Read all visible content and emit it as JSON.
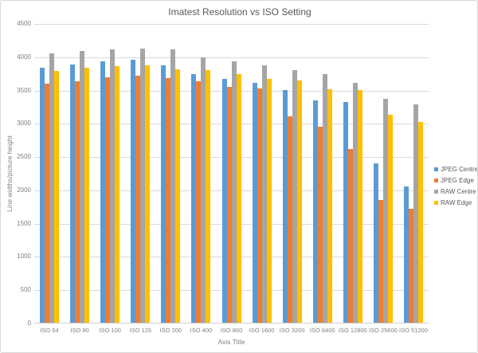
{
  "chart_data": {
    "type": "bar",
    "title": "Imatest Resolution vs ISO Setting",
    "xlabel": "Axis Title",
    "ylabel": "Line widths/picture height",
    "categories": [
      "ISO 64",
      "ISO 80",
      "ISO 100",
      "ISO 125",
      "ISO 200",
      "ISO 400",
      "ISO 800",
      "ISO 1600",
      "ISO 3200",
      "ISO 6400",
      "ISO 12800",
      "ISO 25600",
      "ISO 51200"
    ],
    "series": [
      {
        "name": "JPEG Centre",
        "color": "#5b9bd5",
        "values": [
          3830,
          3880,
          3920,
          3950,
          3860,
          3740,
          3660,
          3600,
          3490,
          3340,
          3310,
          2390,
          2050
        ]
      },
      {
        "name": "JPEG Edge",
        "color": "#ed7d31",
        "values": [
          3590,
          3630,
          3690,
          3710,
          3670,
          3630,
          3540,
          3520,
          3100,
          2940,
          2610,
          1840,
          1710
        ]
      },
      {
        "name": "RAW Centre",
        "color": "#a5a5a5",
        "values": [
          4050,
          4080,
          4100,
          4120,
          4110,
          3980,
          3920,
          3870,
          3790,
          3730,
          3600,
          3360,
          3280
        ]
      },
      {
        "name": "RAW Edge",
        "color": "#ffc000",
        "values": [
          3780,
          3830,
          3850,
          3860,
          3810,
          3790,
          3740,
          3660,
          3640,
          3510,
          3490,
          3120,
          3020
        ]
      }
    ],
    "ylim": [
      0,
      4500
    ],
    "yticks": [
      0,
      500,
      1000,
      1500,
      2000,
      2500,
      3000,
      3500,
      4000,
      4500
    ],
    "grid": true,
    "legend_position": "right",
    "colors": {
      "gridline": "#d9d9d9",
      "title_text": "#595959",
      "tick_text": "#7f7f7f"
    }
  }
}
